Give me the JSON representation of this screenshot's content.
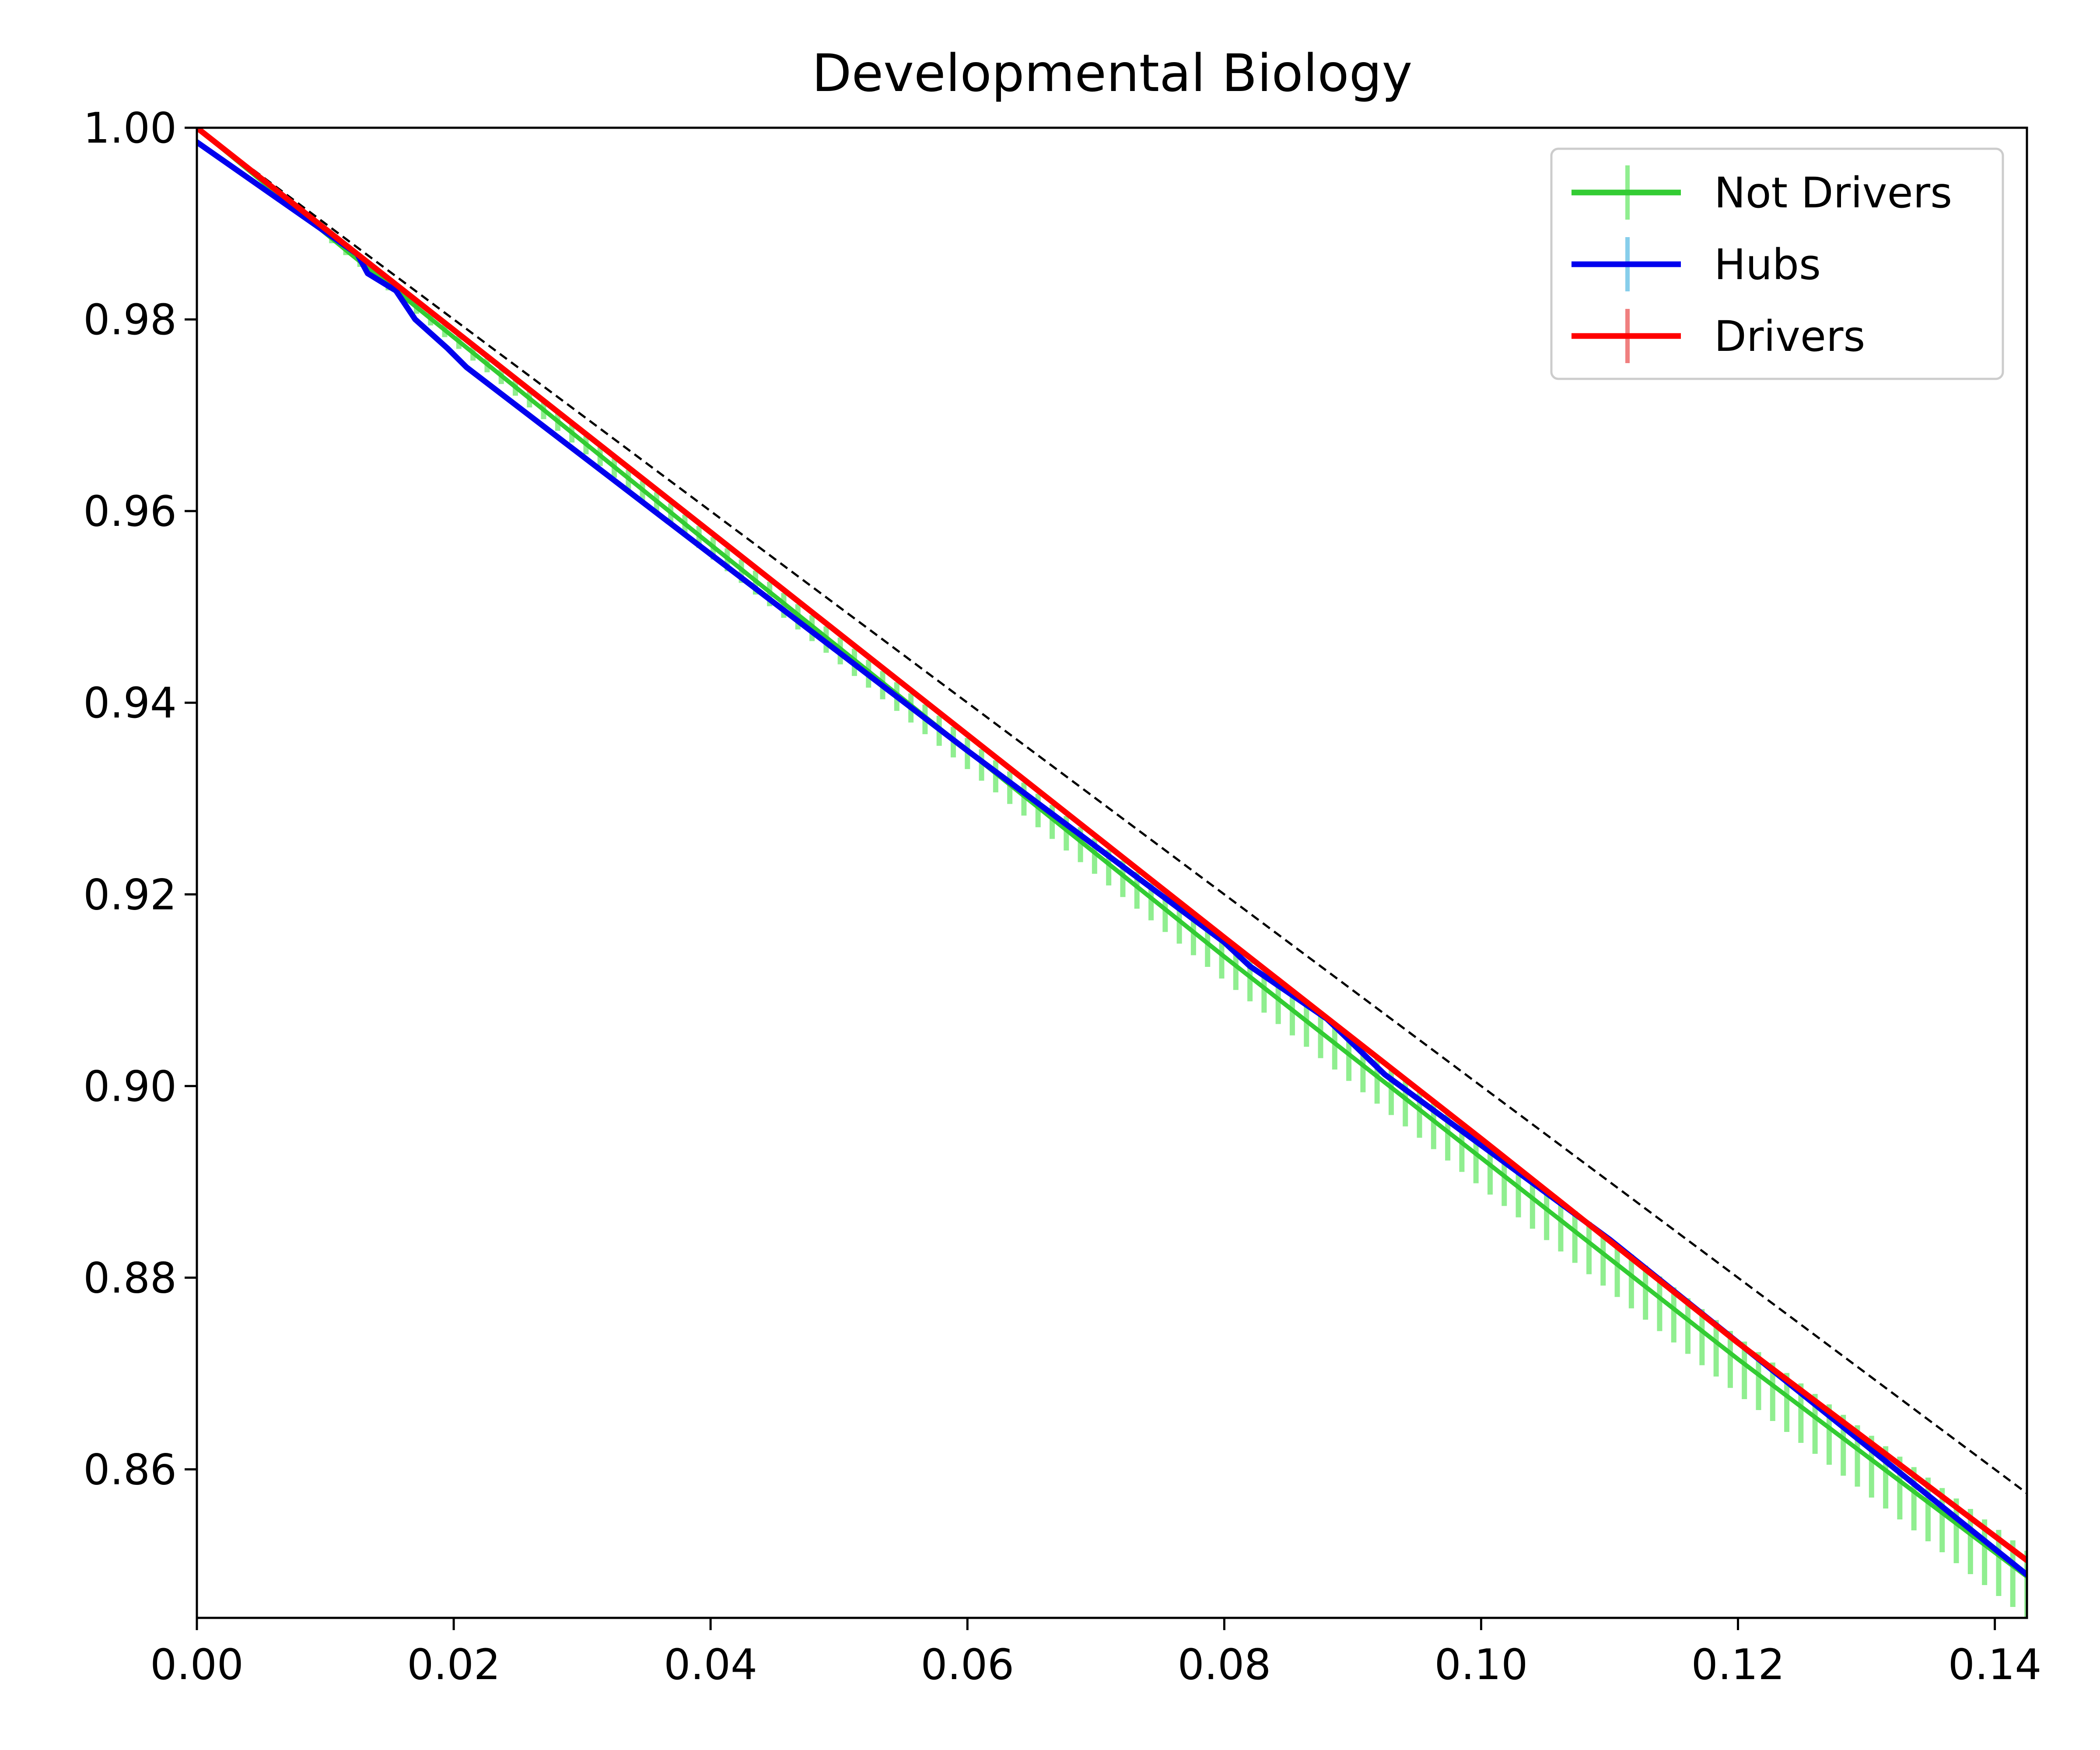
{
  "chart_data": {
    "type": "line",
    "title": "Developmental Biology",
    "xlabel": "",
    "ylabel": "",
    "xlim": [
      0,
      0.1425
    ],
    "ylim": [
      0.8445,
      1.0
    ],
    "x_ticks": [
      "0.00",
      "0.02",
      "0.04",
      "0.06",
      "0.08",
      "0.10",
      "0.12",
      "0.14"
    ],
    "x_tick_values": [
      0,
      0.02,
      0.04,
      0.06,
      0.08,
      0.1,
      0.12,
      0.14
    ],
    "y_ticks": [
      "1.00",
      "0.98",
      "0.96",
      "0.94",
      "0.92",
      "0.90",
      "0.88",
      "0.86"
    ],
    "y_tick_values": [
      1.0,
      0.98,
      0.96,
      0.94,
      0.92,
      0.9,
      0.88,
      0.86
    ],
    "grid": false,
    "legend_position": "top-right",
    "reference_line": {
      "style": "dashed",
      "color": "#000000",
      "points": [
        [
          0,
          1.0
        ],
        [
          0.1425,
          0.8575
        ]
      ]
    },
    "series": [
      {
        "name": "Not Drivers",
        "color": "#33cc33",
        "errorbar_color": "#90ee90",
        "error_start": 0.0105,
        "error_step": 0.0011,
        "error_halfwidth_start": 0.0005,
        "error_halfwidth_end": 0.0035,
        "points": [
          [
            0,
            1.0
          ],
          [
            0.012,
            0.9868
          ],
          [
            0.04,
            0.9565
          ],
          [
            0.08,
            0.9135
          ],
          [
            0.1,
            0.8925
          ],
          [
            0.12,
            0.8715
          ],
          [
            0.1425,
            0.8488
          ]
        ]
      },
      {
        "name": "Hubs",
        "color": "#0000ee",
        "legend_errorbar_color": "#87ceeb",
        "points": [
          [
            0,
            0.9985
          ],
          [
            0.0125,
            0.9868
          ],
          [
            0.0133,
            0.9848
          ],
          [
            0.0155,
            0.983
          ],
          [
            0.017,
            0.98
          ],
          [
            0.0195,
            0.977
          ],
          [
            0.021,
            0.975
          ],
          [
            0.04,
            0.9555
          ],
          [
            0.06,
            0.935
          ],
          [
            0.08,
            0.915
          ],
          [
            0.082,
            0.9125
          ],
          [
            0.088,
            0.907
          ],
          [
            0.0925,
            0.9012
          ],
          [
            0.11,
            0.884
          ],
          [
            0.1425,
            0.849
          ]
        ]
      },
      {
        "name": "Drivers",
        "color": "#ff0000",
        "legend_errorbar_color": "#f08080",
        "points": [
          [
            0,
            1.0
          ],
          [
            0.04,
            0.9578
          ],
          [
            0.08,
            0.9155
          ],
          [
            0.1,
            0.8945
          ],
          [
            0.12,
            0.8732
          ],
          [
            0.1425,
            0.8505
          ]
        ]
      }
    ]
  }
}
